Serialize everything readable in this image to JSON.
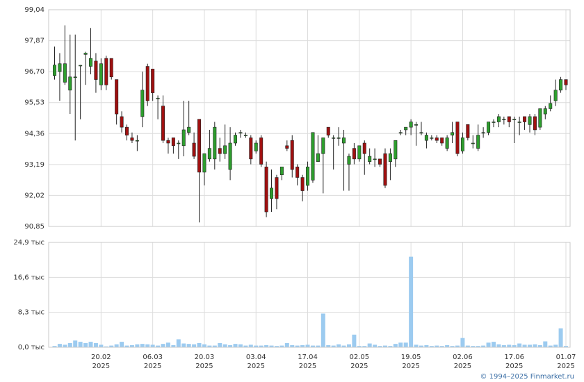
{
  "chart_data": {
    "type": "candlestick",
    "categories": [
      null,
      null,
      null,
      null,
      null,
      null,
      null,
      null,
      null,
      "20.02",
      null,
      null,
      null,
      null,
      null,
      null,
      null,
      null,
      null,
      "06.03",
      null,
      null,
      null,
      null,
      null,
      null,
      null,
      null,
      null,
      "20.03",
      null,
      null,
      null,
      null,
      null,
      null,
      null,
      null,
      null,
      "03.04",
      null,
      null,
      null,
      null,
      null,
      null,
      null,
      null,
      null,
      "17.04",
      null,
      null,
      null,
      null,
      null,
      null,
      null,
      null,
      null,
      "02.05",
      null,
      null,
      null,
      null,
      null,
      null,
      null,
      null,
      null,
      "19.05",
      null,
      null,
      null,
      null,
      null,
      null,
      null,
      null,
      null,
      "02.06",
      null,
      null,
      null,
      null,
      null,
      null,
      null,
      null,
      null,
      "17.06",
      null,
      null,
      null,
      null,
      null,
      null,
      null,
      null,
      null,
      "01.07"
    ],
    "category_years": [
      null,
      null,
      null,
      null,
      null,
      null,
      null,
      null,
      null,
      "2025",
      null,
      null,
      null,
      null,
      null,
      null,
      null,
      null,
      null,
      "2025",
      null,
      null,
      null,
      null,
      null,
      null,
      null,
      null,
      null,
      "2025",
      null,
      null,
      null,
      null,
      null,
      null,
      null,
      null,
      null,
      "2025",
      null,
      null,
      null,
      null,
      null,
      null,
      null,
      null,
      null,
      "2025",
      null,
      null,
      null,
      null,
      null,
      null,
      null,
      null,
      null,
      "2025",
      null,
      null,
      null,
      null,
      null,
      null,
      null,
      null,
      null,
      "2025",
      null,
      null,
      null,
      null,
      null,
      null,
      null,
      null,
      null,
      "2025",
      null,
      null,
      null,
      null,
      null,
      null,
      null,
      null,
      null,
      "2025",
      null,
      null,
      null,
      null,
      null,
      null,
      null,
      null,
      null,
      "2025"
    ],
    "open": [
      96.55,
      96.7,
      96.3,
      96.0,
      96.5,
      96.94,
      97.35,
      96.9,
      97.1,
      96.2,
      97.2,
      97.2,
      96.4,
      95.0,
      94.6,
      94.2,
      94.1,
      95.0,
      96.9,
      96.8,
      95.7,
      95.4,
      94.1,
      94.2,
      94.0,
      93.9,
      94.4,
      94.0,
      94.9,
      92.9,
      93.4,
      93.4,
      93.8,
      93.6,
      93.0,
      94.0,
      94.4,
      94.3,
      94.2,
      93.7,
      94.2,
      93.1,
      91.9,
      92.7,
      92.8,
      93.9,
      94.1,
      93.1,
      92.7,
      92.4,
      92.6,
      93.3,
      93.6,
      94.6,
      94.2,
      94.2,
      94.0,
      93.2,
      93.8,
      93.4,
      94.0,
      93.3,
      93.4,
      93.4,
      93.6,
      93.3,
      93.4,
      94.4,
      94.5,
      94.6,
      94.7,
      94.4,
      94.1,
      94.2,
      94.2,
      94.2,
      93.8,
      94.3,
      94.8,
      93.7,
      94.7,
      94.0,
      93.8,
      94.4,
      94.4,
      94.8,
      94.8,
      94.9,
      95.0,
      94.9,
      94.8,
      95.0,
      94.7,
      95.0,
      94.6,
      95.1,
      95.3,
      95.6,
      96.0,
      96.4
    ],
    "high": [
      97.65,
      97.4,
      98.45,
      98.1,
      98.1,
      96.95,
      97.45,
      98.35,
      97.4,
      97.2,
      97.3,
      97.2,
      96.4,
      95.2,
      94.7,
      94.4,
      94.3,
      96.7,
      97.0,
      96.8,
      95.8,
      95.8,
      94.2,
      94.2,
      94.1,
      95.6,
      95.6,
      94.4,
      94.9,
      93.6,
      94.5,
      94.8,
      94.2,
      94.7,
      94.6,
      94.4,
      94.5,
      94.4,
      94.3,
      94.1,
      94.3,
      93.3,
      93.0,
      92.8,
      93.1,
      94.1,
      94.3,
      93.2,
      92.8,
      93.3,
      94.4,
      94.3,
      94.2,
      94.6,
      94.3,
      94.6,
      94.5,
      93.6,
      94.0,
      93.9,
      94.1,
      93.8,
      93.8,
      93.4,
      93.8,
      93.8,
      94.1,
      94.5,
      94.6,
      94.9,
      94.8,
      94.8,
      94.4,
      94.3,
      94.3,
      94.2,
      94.3,
      94.8,
      94.8,
      94.4,
      94.7,
      94.3,
      94.7,
      94.6,
      94.8,
      94.9,
      95.1,
      95.0,
      95.0,
      95.0,
      95.0,
      95.0,
      95.1,
      95.1,
      95.3,
      95.4,
      95.8,
      96.4,
      96.5,
      96.4
    ],
    "low": [
      96.4,
      95.6,
      96.2,
      95.1,
      94.1,
      94.9,
      96.2,
      96.6,
      95.9,
      96.0,
      96.0,
      96.4,
      94.7,
      94.4,
      94.1,
      94.0,
      93.7,
      94.6,
      95.4,
      95.6,
      94.9,
      94.0,
      93.6,
      93.6,
      93.4,
      93.5,
      94.3,
      93.4,
      91.0,
      92.4,
      93.3,
      93.0,
      93.3,
      93.4,
      92.6,
      93.9,
      94.2,
      94.2,
      93.2,
      93.6,
      93.1,
      91.2,
      91.4,
      91.5,
      92.6,
      93.7,
      92.7,
      92.4,
      91.8,
      92.2,
      92.5,
      93.3,
      92.1,
      94.2,
      93.0,
      93.9,
      92.2,
      92.2,
      93.2,
      93.3,
      92.8,
      93.2,
      93.1,
      93.1,
      92.3,
      92.6,
      93.1,
      94.3,
      94.3,
      94.3,
      93.9,
      94.3,
      93.8,
      94.1,
      94.0,
      93.9,
      93.7,
      94.0,
      93.5,
      93.6,
      94.1,
      93.8,
      93.7,
      94.2,
      94.3,
      94.6,
      94.6,
      94.7,
      94.6,
      94.0,
      94.3,
      94.5,
      94.4,
      94.3,
      94.5,
      94.9,
      95.2,
      95.4,
      95.9,
      96.0
    ],
    "close": [
      96.95,
      97.0,
      97.0,
      96.5,
      96.5,
      96.94,
      97.4,
      97.2,
      96.4,
      97.0,
      96.2,
      96.5,
      95.1,
      94.6,
      94.3,
      94.1,
      94.1,
      96.0,
      95.6,
      95.9,
      95.7,
      94.1,
      94.0,
      93.9,
      94.0,
      94.5,
      94.6,
      93.5,
      92.9,
      93.6,
      93.8,
      94.6,
      93.6,
      93.9,
      94.0,
      94.3,
      94.4,
      94.3,
      93.4,
      94.0,
      93.2,
      91.4,
      92.3,
      91.9,
      93.1,
      93.8,
      93.0,
      92.7,
      92.2,
      93.1,
      94.4,
      93.6,
      94.2,
      94.3,
      94.2,
      94.2,
      94.2,
      93.5,
      93.4,
      93.9,
      93.6,
      93.5,
      93.4,
      93.2,
      92.4,
      93.6,
      94.1,
      94.4,
      94.6,
      94.8,
      94.7,
      94.4,
      94.3,
      94.2,
      94.1,
      94.0,
      94.2,
      94.4,
      93.6,
      94.2,
      94.2,
      94.0,
      94.3,
      94.4,
      94.8,
      94.8,
      95.0,
      94.9,
      94.8,
      94.9,
      94.8,
      94.8,
      95.0,
      94.5,
      95.3,
      95.3,
      95.5,
      96.0,
      96.4,
      96.2
    ],
    "volume": [
      0.3,
      0.8,
      0.6,
      1.0,
      1.6,
      1.3,
      1.0,
      1.3,
      1.0,
      0.6,
      0.2,
      0.4,
      0.7,
      1.3,
      0.4,
      0.5,
      0.7,
      0.8,
      0.7,
      0.6,
      0.4,
      0.8,
      1.1,
      0.5,
      1.9,
      0.9,
      0.8,
      0.7,
      1.0,
      0.7,
      0.4,
      0.4,
      1.0,
      0.7,
      0.5,
      0.8,
      0.7,
      0.4,
      0.6,
      0.4,
      0.4,
      0.5,
      0.4,
      0.3,
      0.4,
      1.0,
      0.5,
      0.4,
      0.5,
      0.6,
      0.4,
      0.4,
      8.0,
      0.5,
      0.4,
      0.7,
      0.4,
      0.7,
      3.0,
      0.3,
      0.3,
      0.9,
      0.6,
      0.3,
      0.4,
      0.3,
      0.8,
      1.1,
      1.1,
      21.5,
      0.6,
      0.4,
      0.5,
      0.3,
      0.4,
      0.3,
      0.5,
      0.3,
      0.4,
      2.2,
      0.4,
      0.3,
      0.3,
      0.4,
      1.1,
      1.3,
      0.7,
      0.5,
      0.6,
      0.5,
      0.9,
      0.6,
      0.6,
      0.7,
      0.5,
      1.4,
      0.4,
      0.6,
      4.5,
      0.3
    ],
    "up_color": "#2e9e2e",
    "down_color": "#a01010",
    "volume_color": "#9ccbf0",
    "ylim": [
      90.85,
      99.04
    ],
    "yticks": [
      {
        "value": 90.85,
        "label": "90,85"
      },
      {
        "value": 92.02,
        "label": "92,02"
      },
      {
        "value": 93.19,
        "label": "93,19"
      },
      {
        "value": 94.36,
        "label": "94,36"
      },
      {
        "value": 95.53,
        "label": "95,53"
      },
      {
        "value": 96.7,
        "label": "96,70"
      },
      {
        "value": 97.87,
        "label": "97,87"
      },
      {
        "value": 99.04,
        "label": "99,04"
      }
    ],
    "y2lim": [
      0,
      24.9
    ],
    "y2ticks": [
      {
        "value": 0,
        "label": "0,0 тыс"
      },
      {
        "value": 8.3,
        "label": "8,3 тыс"
      },
      {
        "value": 16.6,
        "label": "16,6 тыс"
      },
      {
        "value": 24.9,
        "label": "24,9 тыс"
      }
    ],
    "grid": true,
    "copyright": "© 1994–2025 Finmarket.ru"
  }
}
